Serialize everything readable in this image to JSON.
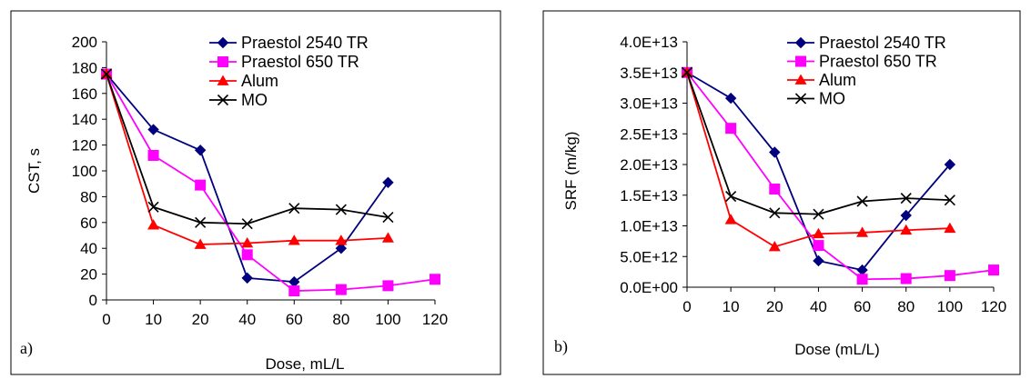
{
  "chart_data": [
    {
      "type": "line",
      "panel_label": "a)",
      "xlabel": "Dose, mL/L",
      "ylabel": "CST, s",
      "categories": [
        "0",
        "10",
        "20",
        "40",
        "60",
        "80",
        "100",
        "120"
      ],
      "yticks": [
        "0",
        "20",
        "40",
        "60",
        "80",
        "100",
        "120",
        "140",
        "160",
        "180",
        "200"
      ],
      "ylim": [
        0,
        200
      ],
      "grid": false,
      "legend_position": "top-right",
      "series": [
        {
          "name": "Praestol 2540 TR",
          "color": "#00007f",
          "marker": "diamond",
          "values": [
            175,
            132,
            116,
            17,
            14,
            40,
            91,
            null
          ]
        },
        {
          "name": "Praestol 650 TR",
          "color": "#ff00ff",
          "marker": "square",
          "values": [
            175,
            112,
            89,
            35,
            7,
            8,
            11,
            16
          ]
        },
        {
          "name": "Alum",
          "color": "#ff0000",
          "marker": "triangle",
          "values": [
            175,
            58,
            43,
            44,
            46,
            46,
            48,
            null
          ]
        },
        {
          "name": "MO",
          "color": "#000000",
          "marker": "x",
          "values": [
            175,
            72,
            60,
            59,
            71,
            70,
            64,
            null
          ]
        }
      ]
    },
    {
      "type": "line",
      "panel_label": "b)",
      "xlabel": "Dose (mL/L)",
      "ylabel": "SRF (m/kg)",
      "categories": [
        "0",
        "10",
        "20",
        "40",
        "60",
        "80",
        "100",
        "120"
      ],
      "yticks": [
        "0.0E+00",
        "5.0E+12",
        "1.0E+13",
        "1.5E+13",
        "2.0E+13",
        "2.5E+13",
        "3.0E+13",
        "3.5E+13",
        "4.0E+13"
      ],
      "ylim": [
        0,
        40000000000000.0
      ],
      "grid": false,
      "legend_position": "top-right",
      "series": [
        {
          "name": "Praestol 2540 TR",
          "color": "#00007f",
          "marker": "diamond",
          "values": [
            35000000000000.0,
            30800000000000.0,
            22000000000000.0,
            4300000000000.0,
            2800000000000.0,
            11700000000000.0,
            20000000000000.0,
            null
          ]
        },
        {
          "name": "Praestol 650 TR",
          "color": "#ff00ff",
          "marker": "square",
          "values": [
            35000000000000.0,
            25900000000000.0,
            16000000000000.0,
            6800000000000.0,
            1300000000000.0,
            1400000000000.0,
            1900000000000.0,
            2800000000000.0
          ]
        },
        {
          "name": "Alum",
          "color": "#ff0000",
          "marker": "triangle",
          "values": [
            35000000000000.0,
            11000000000000.0,
            6600000000000.0,
            8700000000000.0,
            8900000000000.0,
            9300000000000.0,
            9600000000000.0,
            null
          ]
        },
        {
          "name": "MO",
          "color": "#000000",
          "marker": "x",
          "values": [
            35000000000000.0,
            14800000000000.0,
            12100000000000.0,
            11900000000000.0,
            14000000000000.0,
            14500000000000.0,
            14200000000000.0,
            null
          ]
        }
      ]
    }
  ]
}
